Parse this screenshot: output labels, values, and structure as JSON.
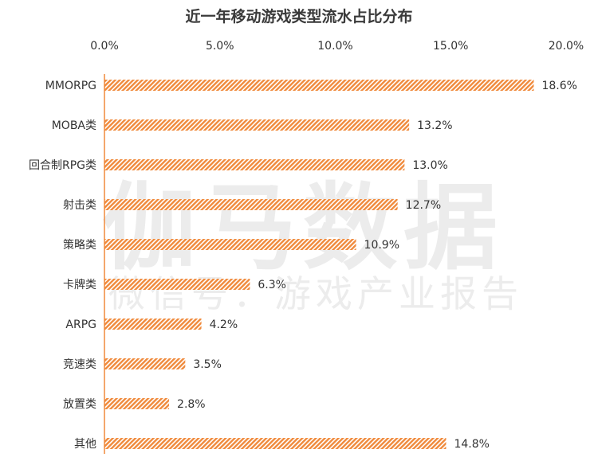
{
  "watermark": {
    "line1": "伽马数据",
    "line2": "微信号：游戏产业报告"
  },
  "chart_data": {
    "type": "bar",
    "orientation": "horizontal",
    "title": "近一年移动游戏类型流水占比分布",
    "xlabel": "",
    "ylabel": "",
    "x_axis_position": "top",
    "xlim": [
      0,
      20
    ],
    "xticks": [
      "0.0%",
      "5.0%",
      "10.0%",
      "15.0%",
      "20.0%"
    ],
    "grid": false,
    "legend": "none",
    "bar_color": "#f08a3c",
    "bar_fill": "diagonal-hatch",
    "categories": [
      "MMORPG",
      "MOBA类",
      "回合制RPG类",
      "射击类",
      "策略类",
      "卡牌类",
      "ARPG",
      "竞速类",
      "放置类",
      "其他"
    ],
    "values": [
      18.6,
      13.2,
      13.0,
      12.7,
      10.9,
      6.3,
      4.2,
      3.5,
      2.8,
      14.8
    ],
    "data_labels": [
      "18.6%",
      "13.2%",
      "13.0%",
      "12.7%",
      "10.9%",
      "6.3%",
      "4.2%",
      "3.5%",
      "2.8%",
      "14.8%"
    ]
  }
}
